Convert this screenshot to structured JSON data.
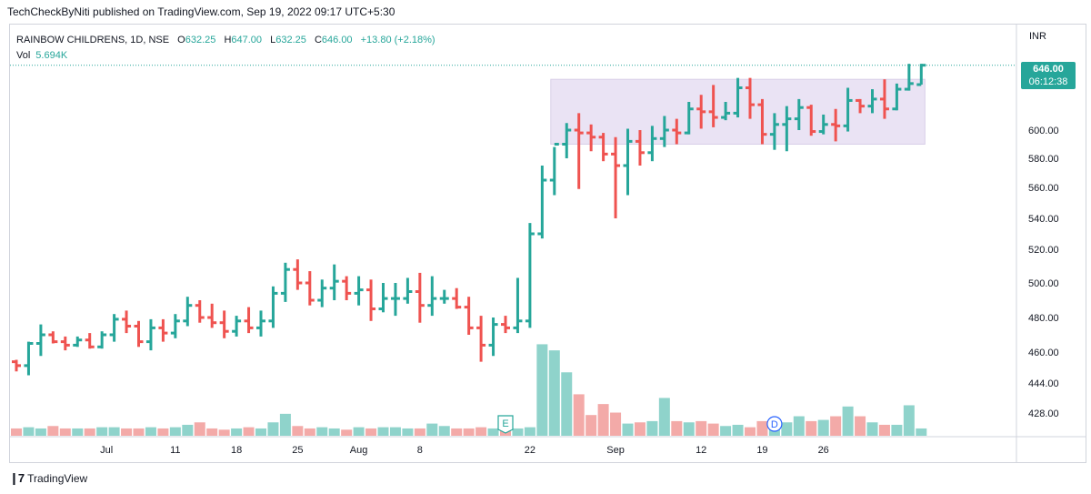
{
  "published": "TechCheckByNiti published on TradingView.com, Sep 19, 2022 09:17 UTC+5:30",
  "legend": {
    "symbol": "RAINBOW CHILDRENS, 1D, NSE",
    "o_label": "O",
    "o": "632.25",
    "h_label": "H",
    "h": "647.00",
    "l_label": "L",
    "l": "632.25",
    "c_label": "C",
    "c": "646.00",
    "change": "+13.80 (+2.18%)",
    "vol_label": "Vol",
    "vol": "5.694K"
  },
  "currency": "INR",
  "last_price": "646.00",
  "countdown": "06:12:38",
  "brand": "TradingView",
  "colors": {
    "up": "#26a69a",
    "down": "#ef5350",
    "up_vol": "#8fd3cb",
    "down_vol": "#f3aaa8",
    "box": "#e6def2"
  },
  "chart_data": {
    "type": "ohlc",
    "ylim": [
      420,
      660
    ],
    "yticks": [
      "600.00",
      "580.00",
      "560.00",
      "540.00",
      "520.00",
      "500.00",
      "480.00",
      "460.00",
      "444.00",
      "428.00"
    ],
    "xticks": [
      {
        "label": "Jul",
        "i": 7
      },
      {
        "label": "11",
        "i": 13
      },
      {
        "label": "18",
        "i": 18
      },
      {
        "label": "25",
        "i": 23
      },
      {
        "label": "Aug",
        "i": 28
      },
      {
        "label": "8",
        "i": 33
      },
      {
        "label": "22",
        "i": 42
      },
      {
        "label": "Sep",
        "i": 49
      },
      {
        "label": "12",
        "i": 56
      },
      {
        "label": "19",
        "i": 61
      },
      {
        "label": "26",
        "i": 66
      }
    ],
    "ohlc": [
      [
        455,
        456,
        450,
        453
      ],
      [
        453,
        466,
        448,
        465
      ],
      [
        465,
        476,
        458,
        470
      ],
      [
        470,
        472,
        465,
        466
      ],
      [
        466,
        469,
        461,
        464
      ],
      [
        464,
        469,
        463,
        467
      ],
      [
        467,
        471,
        462,
        463
      ],
      [
        463,
        472,
        462,
        470
      ],
      [
        470,
        482,
        466,
        479
      ],
      [
        479,
        484,
        471,
        475
      ],
      [
        475,
        478,
        463,
        466
      ],
      [
        466,
        479,
        461,
        474
      ],
      [
        474,
        479,
        466,
        471
      ],
      [
        471,
        482,
        468,
        478
      ],
      [
        478,
        492,
        475,
        487
      ],
      [
        487,
        490,
        477,
        480
      ],
      [
        480,
        488,
        474,
        477
      ],
      [
        477,
        484,
        468,
        472
      ],
      [
        472,
        481,
        469,
        478
      ],
      [
        478,
        486,
        471,
        474
      ],
      [
        474,
        484,
        469,
        478
      ],
      [
        478,
        498,
        474,
        494
      ],
      [
        494,
        512,
        489,
        508
      ],
      [
        508,
        514,
        496,
        500
      ],
      [
        500,
        507,
        487,
        490
      ],
      [
        490,
        502,
        486,
        497
      ],
      [
        497,
        511,
        490,
        501
      ],
      [
        501,
        504,
        490,
        494
      ],
      [
        494,
        504,
        487,
        496
      ],
      [
        496,
        502,
        478,
        485
      ],
      [
        485,
        500,
        483,
        491
      ],
      [
        491,
        500,
        481,
        491
      ],
      [
        491,
        503,
        488,
        495
      ],
      [
        495,
        506,
        477,
        487
      ],
      [
        487,
        504,
        481,
        491
      ],
      [
        491,
        496,
        488,
        491
      ],
      [
        491,
        497,
        485,
        486
      ],
      [
        486,
        492,
        470,
        474
      ],
      [
        474,
        481,
        455,
        464
      ],
      [
        464,
        480,
        458,
        476
      ],
      [
        476,
        481,
        471,
        474
      ],
      [
        474,
        503,
        471,
        478
      ],
      [
        478,
        537,
        474,
        530
      ],
      [
        530,
        575,
        527,
        565
      ],
      [
        565,
        588,
        555,
        590
      ],
      [
        590,
        605,
        580,
        600
      ],
      [
        600,
        612,
        559,
        598
      ],
      [
        598,
        604,
        585,
        595
      ],
      [
        595,
        598,
        578,
        583
      ],
      [
        583,
        595,
        540,
        575
      ],
      [
        575,
        601,
        555,
        592
      ],
      [
        592,
        600,
        575,
        584
      ],
      [
        584,
        603,
        578,
        594
      ],
      [
        594,
        610,
        588,
        600
      ],
      [
        600,
        608,
        590,
        598
      ],
      [
        598,
        620,
        597,
        615
      ],
      [
        615,
        625,
        601,
        613
      ],
      [
        613,
        632,
        602,
        609
      ],
      [
        609,
        620,
        607,
        612
      ],
      [
        612,
        637,
        609,
        630
      ],
      [
        630,
        637,
        608,
        618
      ],
      [
        618,
        622,
        590,
        597
      ],
      [
        597,
        612,
        586,
        604
      ],
      [
        604,
        617,
        585,
        608
      ],
      [
        608,
        622,
        600,
        616
      ],
      [
        616,
        618,
        596,
        599
      ],
      [
        599,
        611,
        597,
        604
      ],
      [
        604,
        615,
        592,
        603
      ],
      [
        603,
        630,
        599,
        621
      ],
      [
        621,
        622,
        612,
        617
      ],
      [
        617,
        629,
        612,
        622
      ],
      [
        622,
        636,
        608,
        615
      ],
      [
        615,
        633,
        614,
        629
      ],
      [
        629,
        647,
        628,
        633
      ],
      [
        632.25,
        647,
        632.25,
        646
      ]
    ],
    "volume_k": [
      6,
      7,
      6,
      8,
      6,
      6,
      6,
      7,
      7,
      6,
      6,
      7,
      6,
      7,
      9,
      11,
      6,
      5,
      6,
      7,
      6,
      11,
      18,
      8,
      6,
      7,
      6,
      5,
      7,
      6,
      7,
      7,
      6,
      6,
      10,
      8,
      6,
      6,
      7,
      6,
      5,
      6,
      7,
      75,
      70,
      52,
      34,
      17,
      26,
      19,
      10,
      11,
      12,
      31,
      12,
      11,
      12,
      10,
      8,
      9,
      7,
      12,
      9,
      11,
      16,
      12,
      13,
      16,
      24,
      16,
      11,
      9,
      9,
      25,
      6
    ],
    "vol_max_k": 85,
    "rectangle": {
      "x0_index": 44,
      "x1_index": 74,
      "y_top": 636,
      "y_bottom": 590
    },
    "markers": [
      {
        "label": "E",
        "index": 40,
        "shape": "pentagon"
      },
      {
        "label": "D",
        "index": 62,
        "shape": "circle"
      }
    ]
  }
}
